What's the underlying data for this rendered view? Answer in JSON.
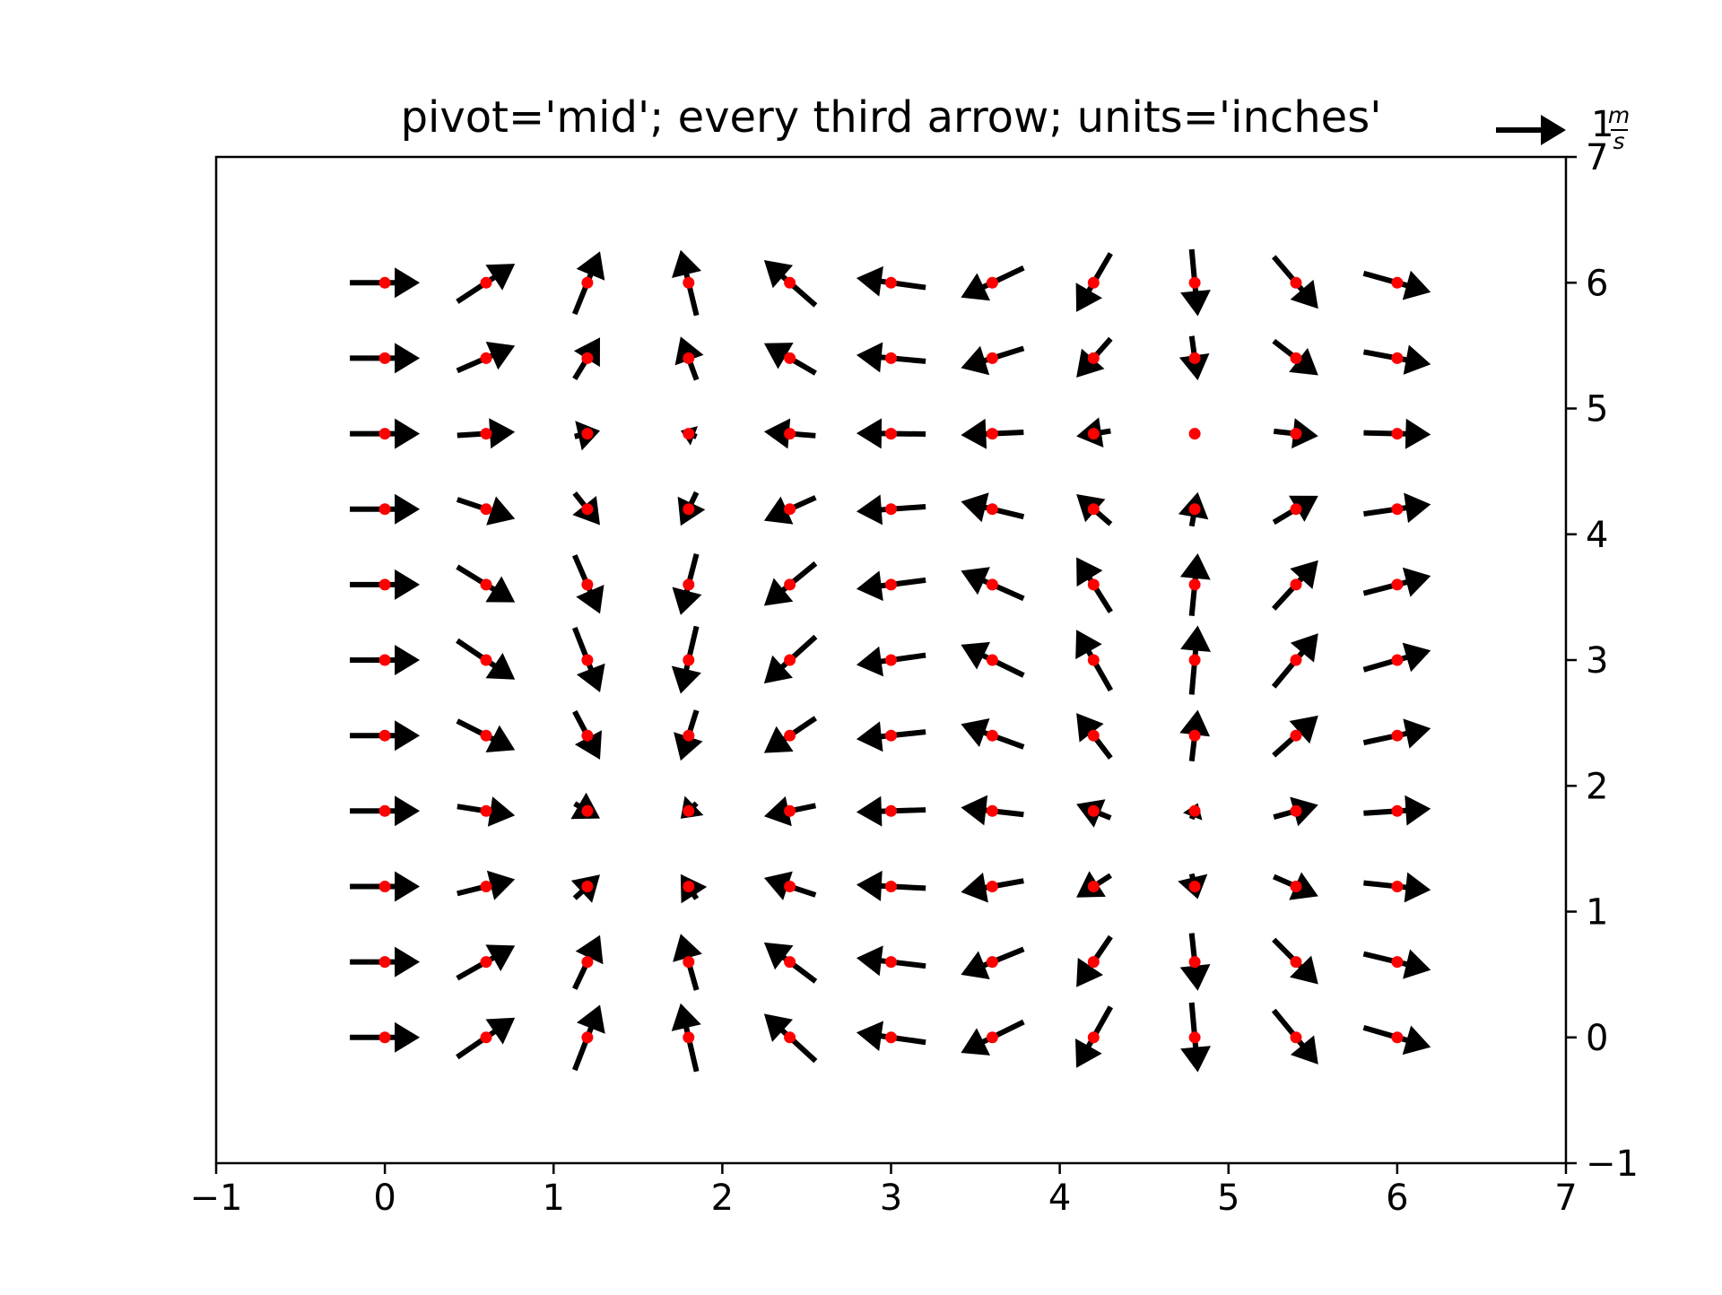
{
  "chart_data": {
    "type": "quiver",
    "title": "pivot='mid'; every third arrow; units='inches'",
    "xlabel": "",
    "ylabel": "",
    "xlim": [
      -1,
      7
    ],
    "ylim": [
      -1,
      7
    ],
    "xticks": [
      -1,
      0,
      1,
      2,
      3,
      4,
      5,
      6,
      7
    ],
    "yticks": [
      -1,
      0,
      1,
      2,
      3,
      4,
      5,
      6,
      7
    ],
    "y_axis_side": "right",
    "grid": false,
    "pivot": "mid",
    "units": "inches",
    "arrow_color": "#000000",
    "point_color": "#ff0000",
    "x": [
      0.0,
      0.6,
      1.2,
      1.8,
      2.4,
      3.0,
      3.6,
      4.2,
      4.8,
      5.4,
      6.0
    ],
    "y": [
      0.0,
      0.6,
      1.2,
      1.8,
      2.4,
      3.0,
      3.6,
      4.2,
      4.8,
      5.4,
      6.0
    ],
    "U": [
      1.0,
      0.825,
      0.362,
      -0.227,
      -0.737,
      -0.99,
      -0.897,
      -0.49,
      0.087,
      0.635,
      0.96
    ],
    "V": [
      0.0,
      0.565,
      0.932,
      0.974,
      0.675,
      0.141,
      -0.443,
      -0.872,
      -0.996,
      -0.773,
      -0.279
    ],
    "key": {
      "value": 1,
      "label_num": "1",
      "label_unit_num": "m",
      "label_unit_den": "s",
      "position": "top-right"
    }
  }
}
